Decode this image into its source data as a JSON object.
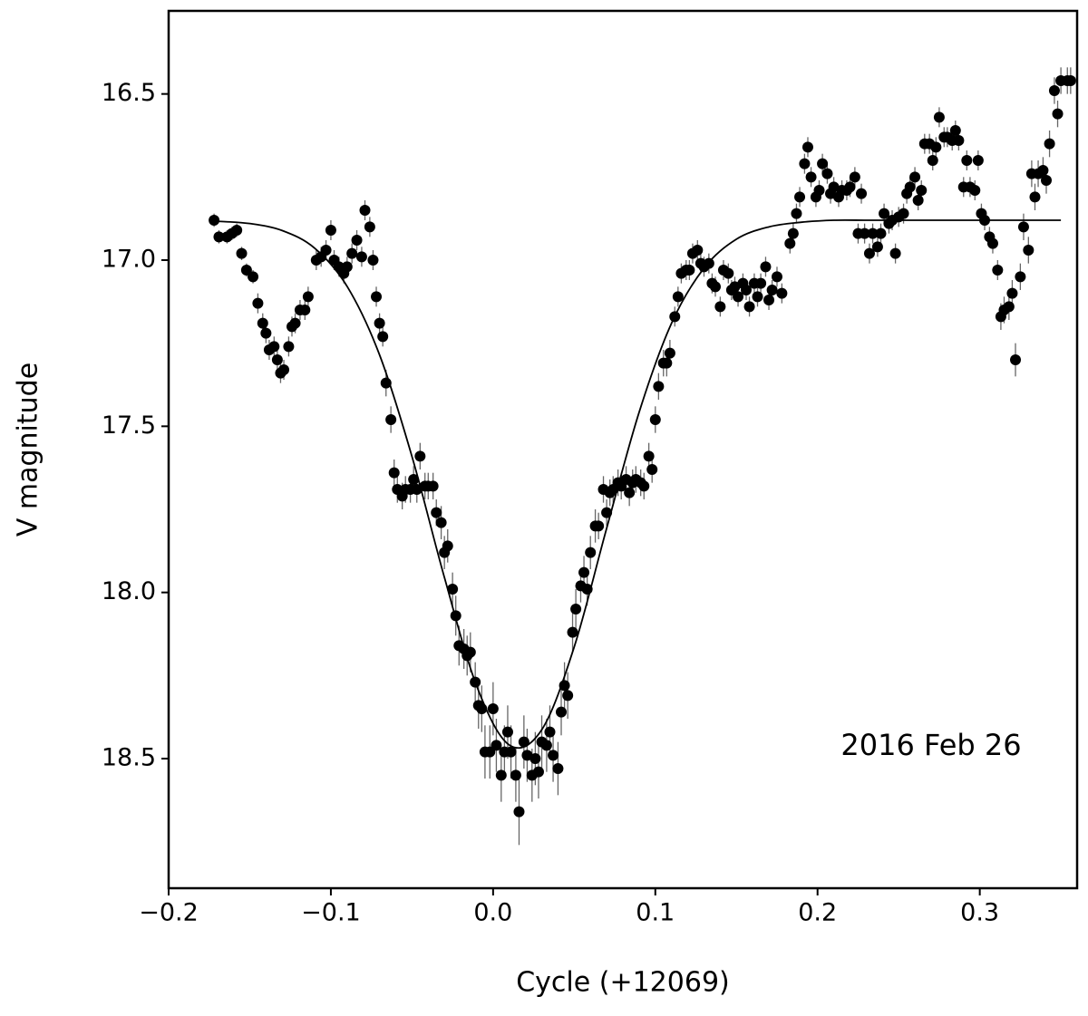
{
  "chart_data": {
    "type": "scatter",
    "x_label": "Cycle (+12069)",
    "y_label": "V magnitude",
    "annotation": "2016 Feb 26",
    "xlim": [
      -0.2,
      0.36
    ],
    "ylim": [
      18.89,
      16.25
    ],
    "xticks": [
      {
        "value": -0.2,
        "label": "−0.2"
      },
      {
        "value": -0.1,
        "label": "−0.1"
      },
      {
        "value": 0,
        "label": "0.0"
      },
      0.1,
      0.2,
      0.3
    ],
    "yticks": [
      16.5,
      {
        "value": 17,
        "label": "17.0"
      },
      17.5,
      {
        "value": 18,
        "label": "18.0"
      },
      18.5
    ],
    "color": "#000000",
    "error_color": "#666666",
    "model_color": "#000000",
    "points": {
      "x": [
        -0.172,
        -0.169,
        -0.164,
        -0.161,
        -0.158,
        -0.155,
        -0.152,
        -0.148,
        -0.145,
        -0.142,
        -0.14,
        -0.138,
        -0.135,
        -0.133,
        -0.131,
        -0.129,
        -0.126,
        -0.124,
        -0.122,
        -0.119,
        -0.116,
        -0.114,
        -0.109,
        -0.106,
        -0.103,
        -0.1,
        -0.098,
        -0.095,
        -0.092,
        -0.09,
        -0.087,
        -0.084,
        -0.081,
        -0.079,
        -0.076,
        -0.074,
        -0.072,
        -0.07,
        -0.068,
        -0.066,
        -0.063,
        -0.061,
        -0.059,
        -0.056,
        -0.054,
        -0.051,
        -0.049,
        -0.047,
        -0.045,
        -0.042,
        -0.04,
        -0.037,
        -0.035,
        -0.032,
        -0.03,
        -0.028,
        -0.025,
        -0.023,
        -0.021,
        -0.018,
        -0.016,
        -0.014,
        -0.011,
        -0.009,
        -0.007,
        -0.005,
        -0.002,
        0.0,
        0.002,
        0.005,
        0.007,
        0.009,
        0.011,
        0.014,
        0.016,
        0.019,
        0.021,
        0.024,
        0.026,
        0.028,
        0.03,
        0.033,
        0.035,
        0.037,
        0.04,
        0.042,
        0.044,
        0.046,
        0.049,
        0.051,
        0.054,
        0.056,
        0.058,
        0.06,
        0.063,
        0.065,
        0.068,
        0.07,
        0.072,
        0.074,
        0.077,
        0.079,
        0.082,
        0.084,
        0.086,
        0.088,
        0.091,
        0.093,
        0.096,
        0.098,
        0.1,
        0.102,
        0.105,
        0.107,
        0.109,
        0.112,
        0.114,
        0.116,
        0.119,
        0.121,
        0.123,
        0.126,
        0.128,
        0.13,
        0.133,
        0.135,
        0.137,
        0.14,
        0.142,
        0.145,
        0.147,
        0.149,
        0.151,
        0.154,
        0.156,
        0.158,
        0.161,
        0.163,
        0.165,
        0.168,
        0.17,
        0.172,
        0.175,
        0.178,
        0.183,
        0.185,
        0.187,
        0.189,
        0.192,
        0.194,
        0.196,
        0.199,
        0.201,
        0.203,
        0.206,
        0.208,
        0.21,
        0.213,
        0.215,
        0.218,
        0.22,
        0.223,
        0.225,
        0.227,
        0.229,
        0.232,
        0.234,
        0.237,
        0.239,
        0.241,
        0.244,
        0.246,
        0.248,
        0.25,
        0.253,
        0.255,
        0.257,
        0.26,
        0.262,
        0.264,
        0.266,
        0.269,
        0.271,
        0.273,
        0.275,
        0.278,
        0.28,
        0.283,
        0.285,
        0.287,
        0.29,
        0.292,
        0.294,
        0.297,
        0.299,
        0.301,
        0.303,
        0.306,
        0.308,
        0.311,
        0.313,
        0.315,
        0.318,
        0.32,
        0.322,
        0.325,
        0.327,
        0.33,
        0.332,
        0.334,
        0.336,
        0.339,
        0.341,
        0.343,
        0.346,
        0.348,
        0.35,
        0.354,
        0.356
      ],
      "values": [
        16.88,
        16.93,
        16.93,
        16.92,
        16.91,
        16.98,
        17.03,
        17.05,
        17.13,
        17.19,
        17.22,
        17.27,
        17.26,
        17.3,
        17.34,
        17.33,
        17.26,
        17.2,
        17.19,
        17.15,
        17.15,
        17.11,
        17.0,
        16.99,
        16.97,
        16.91,
        17.0,
        17.02,
        17.04,
        17.02,
        16.98,
        16.94,
        16.99,
        16.85,
        16.9,
        17.0,
        17.11,
        17.19,
        17.23,
        17.37,
        17.48,
        17.64,
        17.69,
        17.71,
        17.69,
        17.69,
        17.66,
        17.69,
        17.59,
        17.68,
        17.68,
        17.68,
        17.76,
        17.79,
        17.88,
        17.86,
        17.99,
        18.07,
        18.16,
        18.17,
        18.19,
        18.18,
        18.27,
        18.34,
        18.35,
        18.48,
        18.48,
        18.35,
        18.46,
        18.55,
        18.48,
        18.42,
        18.48,
        18.55,
        18.66,
        18.45,
        18.49,
        18.55,
        18.5,
        18.54,
        18.45,
        18.46,
        18.42,
        18.49,
        18.53,
        18.36,
        18.28,
        18.31,
        18.12,
        18.05,
        17.98,
        17.94,
        17.99,
        17.88,
        17.8,
        17.8,
        17.69,
        17.76,
        17.7,
        17.69,
        17.67,
        17.68,
        17.66,
        17.7,
        17.67,
        17.66,
        17.67,
        17.68,
        17.59,
        17.63,
        17.48,
        17.38,
        17.31,
        17.31,
        17.28,
        17.17,
        17.11,
        17.04,
        17.03,
        17.03,
        16.98,
        16.97,
        17.01,
        17.02,
        17.01,
        17.07,
        17.08,
        17.14,
        17.03,
        17.04,
        17.09,
        17.08,
        17.11,
        17.07,
        17.09,
        17.14,
        17.07,
        17.11,
        17.07,
        17.02,
        17.12,
        17.09,
        17.05,
        17.1,
        16.95,
        16.92,
        16.86,
        16.81,
        16.71,
        16.66,
        16.75,
        16.81,
        16.79,
        16.71,
        16.74,
        16.8,
        16.78,
        16.81,
        16.79,
        16.79,
        16.78,
        16.75,
        16.92,
        16.8,
        16.92,
        16.98,
        16.92,
        16.96,
        16.92,
        16.86,
        16.89,
        16.88,
        16.98,
        16.87,
        16.86,
        16.8,
        16.78,
        16.75,
        16.82,
        16.79,
        16.65,
        16.65,
        16.7,
        16.66,
        16.57,
        16.63,
        16.63,
        16.64,
        16.61,
        16.64,
        16.78,
        16.7,
        16.78,
        16.79,
        16.7,
        16.86,
        16.88,
        16.93,
        16.95,
        17.03,
        17.17,
        17.15,
        17.14,
        17.1,
        17.3,
        17.05,
        16.9,
        16.97,
        16.74,
        16.81,
        16.74,
        16.73,
        16.76,
        16.65,
        16.49,
        16.56,
        16.46,
        16.46,
        16.46
      ],
      "errors": [
        0.02,
        0.02,
        0.02,
        0.02,
        0.02,
        0.02,
        0.02,
        0.02,
        0.03,
        0.03,
        0.03,
        0.03,
        0.03,
        0.03,
        0.03,
        0.03,
        0.03,
        0.03,
        0.03,
        0.03,
        0.03,
        0.03,
        0.03,
        0.03,
        0.03,
        0.03,
        0.03,
        0.03,
        0.03,
        0.03,
        0.03,
        0.03,
        0.03,
        0.03,
        0.03,
        0.03,
        0.03,
        0.03,
        0.03,
        0.04,
        0.04,
        0.04,
        0.04,
        0.04,
        0.04,
        0.04,
        0.04,
        0.04,
        0.04,
        0.04,
        0.04,
        0.04,
        0.04,
        0.05,
        0.05,
        0.05,
        0.05,
        0.06,
        0.06,
        0.06,
        0.06,
        0.06,
        0.06,
        0.07,
        0.07,
        0.08,
        0.08,
        0.08,
        0.08,
        0.08,
        0.08,
        0.08,
        0.08,
        0.08,
        0.1,
        0.08,
        0.08,
        0.08,
        0.08,
        0.08,
        0.08,
        0.08,
        0.08,
        0.08,
        0.08,
        0.07,
        0.07,
        0.07,
        0.06,
        0.06,
        0.05,
        0.05,
        0.05,
        0.05,
        0.05,
        0.04,
        0.04,
        0.04,
        0.04,
        0.04,
        0.04,
        0.04,
        0.04,
        0.04,
        0.04,
        0.04,
        0.04,
        0.04,
        0.04,
        0.04,
        0.04,
        0.04,
        0.04,
        0.04,
        0.04,
        0.03,
        0.03,
        0.03,
        0.03,
        0.03,
        0.03,
        0.03,
        0.03,
        0.03,
        0.03,
        0.03,
        0.03,
        0.03,
        0.03,
        0.03,
        0.03,
        0.03,
        0.03,
        0.03,
        0.03,
        0.03,
        0.03,
        0.03,
        0.03,
        0.03,
        0.03,
        0.03,
        0.03,
        0.03,
        0.03,
        0.03,
        0.03,
        0.03,
        0.03,
        0.03,
        0.03,
        0.03,
        0.03,
        0.03,
        0.03,
        0.03,
        0.03,
        0.03,
        0.03,
        0.03,
        0.03,
        0.03,
        0.03,
        0.03,
        0.03,
        0.03,
        0.03,
        0.03,
        0.03,
        0.03,
        0.03,
        0.03,
        0.03,
        0.03,
        0.03,
        0.03,
        0.03,
        0.03,
        0.03,
        0.03,
        0.03,
        0.03,
        0.03,
        0.03,
        0.03,
        0.03,
        0.03,
        0.03,
        0.03,
        0.03,
        0.03,
        0.03,
        0.03,
        0.03,
        0.03,
        0.03,
        0.03,
        0.03,
        0.03,
        0.03,
        0.04,
        0.04,
        0.04,
        0.04,
        0.05,
        0.04,
        0.04,
        0.04,
        0.04,
        0.04,
        0.04,
        0.04,
        0.04,
        0.04,
        0.04,
        0.04,
        0.04,
        0.04,
        0.04
      ]
    },
    "model": {
      "x": [
        -0.17,
        -0.15,
        -0.13,
        -0.11,
        -0.09,
        -0.07,
        -0.05,
        -0.03,
        -0.01,
        0.01,
        0.03,
        0.05,
        0.07,
        0.09,
        0.11,
        0.13,
        0.15,
        0.17,
        0.19,
        0.21,
        0.23,
        0.25,
        0.27,
        0.29,
        0.31,
        0.33,
        0.35
      ],
      "values": [
        16.883,
        16.89,
        16.911,
        16.964,
        17.079,
        17.285,
        17.591,
        17.955,
        18.283,
        18.459,
        18.413,
        18.164,
        17.807,
        17.458,
        17.19,
        17.024,
        16.937,
        16.9,
        16.886,
        16.88,
        16.88,
        16.88,
        16.88,
        16.88,
        16.88,
        16.88,
        16.88
      ]
    }
  }
}
